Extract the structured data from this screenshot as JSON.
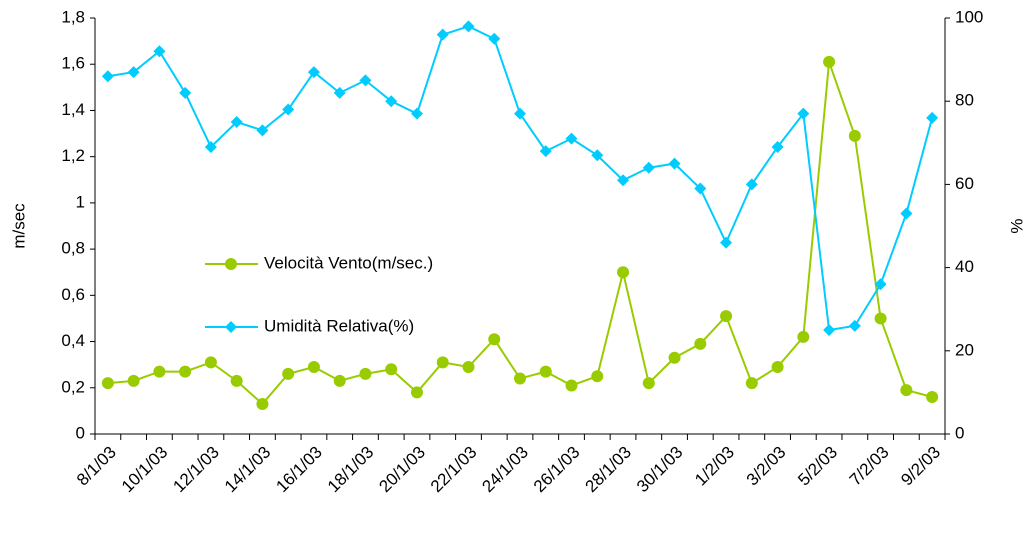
{
  "chart_data": {
    "type": "line",
    "y_label": "m/sec",
    "y2_label": "%",
    "categories": [
      "8/1/03",
      null,
      "10/1/03",
      null,
      "12/1/03",
      null,
      "14/1/03",
      null,
      "16/1/03",
      null,
      "18/1/03",
      null,
      "20/1/03",
      null,
      "22/1/03",
      null,
      "24/1/03",
      null,
      "26/1/03",
      null,
      "28/1/03",
      null,
      "30/1/03",
      null,
      "1/2/03",
      null,
      "3/2/03",
      null,
      "5/2/03",
      null,
      "7/2/03",
      null,
      "9/2/03"
    ],
    "series": [
      {
        "name": "Velocità Vento(m/sec.)",
        "color": "#99cc00",
        "marker": "circle",
        "values": [
          0.22,
          0.23,
          0.27,
          0.27,
          0.31,
          0.23,
          0.13,
          0.26,
          0.29,
          0.23,
          0.26,
          0.28,
          0.18,
          0.31,
          0.29,
          0.41,
          0.24,
          0.27,
          0.21,
          0.25,
          0.7,
          0.22,
          0.33,
          0.39,
          0.51,
          0.22,
          0.29,
          0.42,
          1.61,
          1.29,
          0.5,
          0.19,
          0.16
        ]
      },
      {
        "name": "Umidità Relativa(%)",
        "color": "#00ccff",
        "marker": "diamond",
        "axis": "y2",
        "values": [
          86,
          87,
          92,
          82,
          69,
          75,
          73,
          78,
          87,
          82,
          85,
          80,
          77,
          96,
          98,
          95,
          77,
          68,
          71,
          67,
          61,
          64,
          65,
          59,
          46,
          60,
          69,
          77,
          25,
          26,
          36,
          53,
          76
        ]
      }
    ],
    "ylim": [
      0,
      1.8
    ],
    "yticks": [
      0,
      {
        "value": 0.2,
        "label": "0,2"
      },
      {
        "value": 0.4,
        "label": "0,4"
      },
      {
        "value": 0.6,
        "label": "0,6"
      },
      {
        "value": 0.8,
        "label": "0,8"
      },
      1,
      {
        "value": 1.2,
        "label": "1,2"
      },
      {
        "value": 1.4,
        "label": "1,4"
      },
      {
        "value": 1.6,
        "label": "1,6"
      },
      {
        "value": 1.8,
        "label": "1,8"
      }
    ],
    "y2lim": [
      0,
      100
    ],
    "y2ticks": [
      0,
      20,
      40,
      60,
      80,
      100
    ],
    "grid": false
  }
}
